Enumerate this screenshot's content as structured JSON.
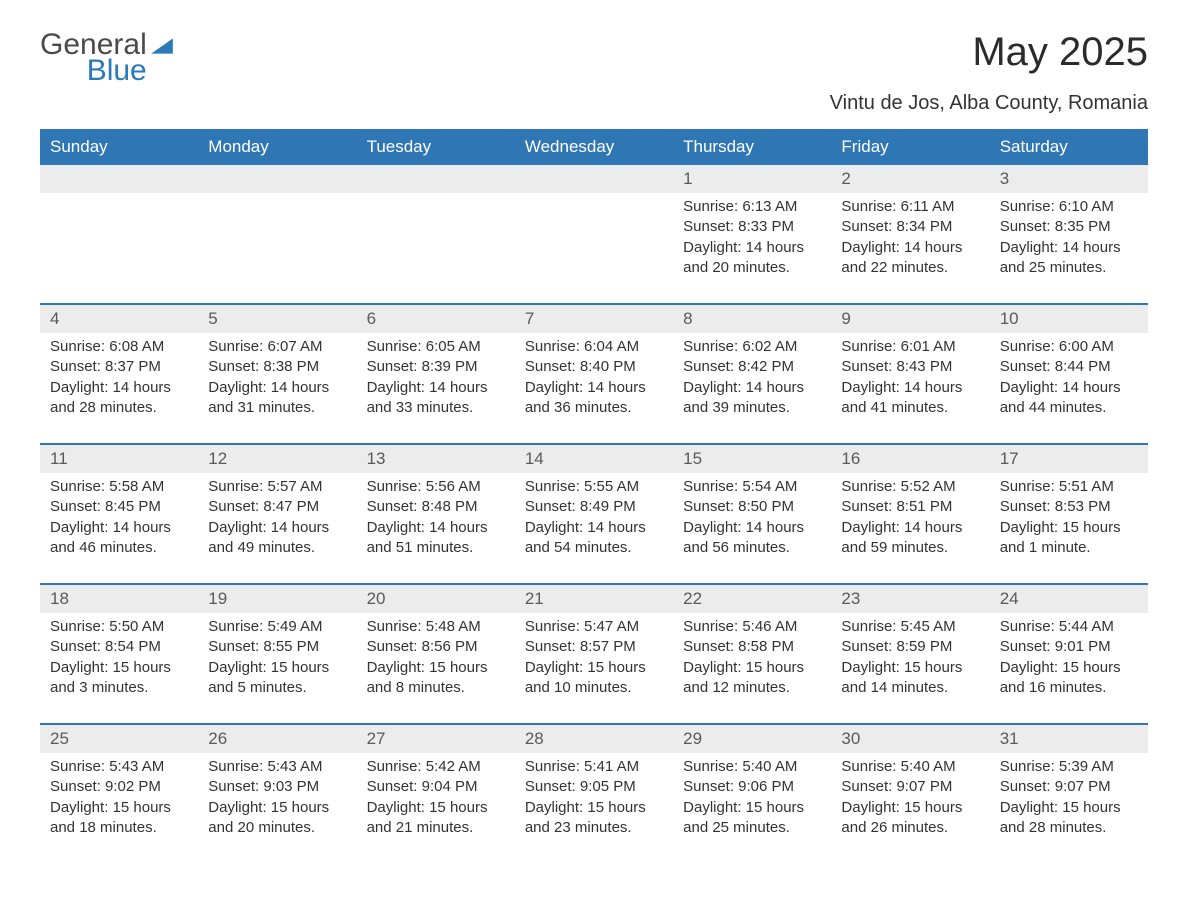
{
  "logo": {
    "general": "General",
    "blue": "Blue",
    "accent_color": "#2a7ab8",
    "text_color": "#4a4a4a"
  },
  "title": "May 2025",
  "subtitle": "Vintu de Jos, Alba County, Romania",
  "colors": {
    "header_bg": "#2f76b5",
    "header_fg": "#ffffff",
    "daynum_bg": "#ececec",
    "daynum_fg": "#5a5a5a",
    "body_fg": "#333333",
    "page_bg": "#ffffff",
    "rule": "#2f76b5"
  },
  "day_headers": [
    "Sunday",
    "Monday",
    "Tuesday",
    "Wednesday",
    "Thursday",
    "Friday",
    "Saturday"
  ],
  "weeks": [
    [
      {
        "day": "",
        "sunrise": "",
        "sunset": "",
        "daylight": ""
      },
      {
        "day": "",
        "sunrise": "",
        "sunset": "",
        "daylight": ""
      },
      {
        "day": "",
        "sunrise": "",
        "sunset": "",
        "daylight": ""
      },
      {
        "day": "",
        "sunrise": "",
        "sunset": "",
        "daylight": ""
      },
      {
        "day": "1",
        "sunrise": "Sunrise: 6:13 AM",
        "sunset": "Sunset: 8:33 PM",
        "daylight": "Daylight: 14 hours and 20 minutes."
      },
      {
        "day": "2",
        "sunrise": "Sunrise: 6:11 AM",
        "sunset": "Sunset: 8:34 PM",
        "daylight": "Daylight: 14 hours and 22 minutes."
      },
      {
        "day": "3",
        "sunrise": "Sunrise: 6:10 AM",
        "sunset": "Sunset: 8:35 PM",
        "daylight": "Daylight: 14 hours and 25 minutes."
      }
    ],
    [
      {
        "day": "4",
        "sunrise": "Sunrise: 6:08 AM",
        "sunset": "Sunset: 8:37 PM",
        "daylight": "Daylight: 14 hours and 28 minutes."
      },
      {
        "day": "5",
        "sunrise": "Sunrise: 6:07 AM",
        "sunset": "Sunset: 8:38 PM",
        "daylight": "Daylight: 14 hours and 31 minutes."
      },
      {
        "day": "6",
        "sunrise": "Sunrise: 6:05 AM",
        "sunset": "Sunset: 8:39 PM",
        "daylight": "Daylight: 14 hours and 33 minutes."
      },
      {
        "day": "7",
        "sunrise": "Sunrise: 6:04 AM",
        "sunset": "Sunset: 8:40 PM",
        "daylight": "Daylight: 14 hours and 36 minutes."
      },
      {
        "day": "8",
        "sunrise": "Sunrise: 6:02 AM",
        "sunset": "Sunset: 8:42 PM",
        "daylight": "Daylight: 14 hours and 39 minutes."
      },
      {
        "day": "9",
        "sunrise": "Sunrise: 6:01 AM",
        "sunset": "Sunset: 8:43 PM",
        "daylight": "Daylight: 14 hours and 41 minutes."
      },
      {
        "day": "10",
        "sunrise": "Sunrise: 6:00 AM",
        "sunset": "Sunset: 8:44 PM",
        "daylight": "Daylight: 14 hours and 44 minutes."
      }
    ],
    [
      {
        "day": "11",
        "sunrise": "Sunrise: 5:58 AM",
        "sunset": "Sunset: 8:45 PM",
        "daylight": "Daylight: 14 hours and 46 minutes."
      },
      {
        "day": "12",
        "sunrise": "Sunrise: 5:57 AM",
        "sunset": "Sunset: 8:47 PM",
        "daylight": "Daylight: 14 hours and 49 minutes."
      },
      {
        "day": "13",
        "sunrise": "Sunrise: 5:56 AM",
        "sunset": "Sunset: 8:48 PM",
        "daylight": "Daylight: 14 hours and 51 minutes."
      },
      {
        "day": "14",
        "sunrise": "Sunrise: 5:55 AM",
        "sunset": "Sunset: 8:49 PM",
        "daylight": "Daylight: 14 hours and 54 minutes."
      },
      {
        "day": "15",
        "sunrise": "Sunrise: 5:54 AM",
        "sunset": "Sunset: 8:50 PM",
        "daylight": "Daylight: 14 hours and 56 minutes."
      },
      {
        "day": "16",
        "sunrise": "Sunrise: 5:52 AM",
        "sunset": "Sunset: 8:51 PM",
        "daylight": "Daylight: 14 hours and 59 minutes."
      },
      {
        "day": "17",
        "sunrise": "Sunrise: 5:51 AM",
        "sunset": "Sunset: 8:53 PM",
        "daylight": "Daylight: 15 hours and 1 minute."
      }
    ],
    [
      {
        "day": "18",
        "sunrise": "Sunrise: 5:50 AM",
        "sunset": "Sunset: 8:54 PM",
        "daylight": "Daylight: 15 hours and 3 minutes."
      },
      {
        "day": "19",
        "sunrise": "Sunrise: 5:49 AM",
        "sunset": "Sunset: 8:55 PM",
        "daylight": "Daylight: 15 hours and 5 minutes."
      },
      {
        "day": "20",
        "sunrise": "Sunrise: 5:48 AM",
        "sunset": "Sunset: 8:56 PM",
        "daylight": "Daylight: 15 hours and 8 minutes."
      },
      {
        "day": "21",
        "sunrise": "Sunrise: 5:47 AM",
        "sunset": "Sunset: 8:57 PM",
        "daylight": "Daylight: 15 hours and 10 minutes."
      },
      {
        "day": "22",
        "sunrise": "Sunrise: 5:46 AM",
        "sunset": "Sunset: 8:58 PM",
        "daylight": "Daylight: 15 hours and 12 minutes."
      },
      {
        "day": "23",
        "sunrise": "Sunrise: 5:45 AM",
        "sunset": "Sunset: 8:59 PM",
        "daylight": "Daylight: 15 hours and 14 minutes."
      },
      {
        "day": "24",
        "sunrise": "Sunrise: 5:44 AM",
        "sunset": "Sunset: 9:01 PM",
        "daylight": "Daylight: 15 hours and 16 minutes."
      }
    ],
    [
      {
        "day": "25",
        "sunrise": "Sunrise: 5:43 AM",
        "sunset": "Sunset: 9:02 PM",
        "daylight": "Daylight: 15 hours and 18 minutes."
      },
      {
        "day": "26",
        "sunrise": "Sunrise: 5:43 AM",
        "sunset": "Sunset: 9:03 PM",
        "daylight": "Daylight: 15 hours and 20 minutes."
      },
      {
        "day": "27",
        "sunrise": "Sunrise: 5:42 AM",
        "sunset": "Sunset: 9:04 PM",
        "daylight": "Daylight: 15 hours and 21 minutes."
      },
      {
        "day": "28",
        "sunrise": "Sunrise: 5:41 AM",
        "sunset": "Sunset: 9:05 PM",
        "daylight": "Daylight: 15 hours and 23 minutes."
      },
      {
        "day": "29",
        "sunrise": "Sunrise: 5:40 AM",
        "sunset": "Sunset: 9:06 PM",
        "daylight": "Daylight: 15 hours and 25 minutes."
      },
      {
        "day": "30",
        "sunrise": "Sunrise: 5:40 AM",
        "sunset": "Sunset: 9:07 PM",
        "daylight": "Daylight: 15 hours and 26 minutes."
      },
      {
        "day": "31",
        "sunrise": "Sunrise: 5:39 AM",
        "sunset": "Sunset: 9:07 PM",
        "daylight": "Daylight: 15 hours and 28 minutes."
      }
    ]
  ]
}
